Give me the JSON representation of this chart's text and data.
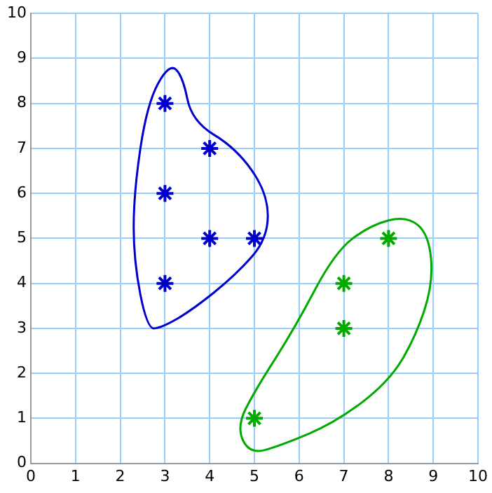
{
  "chart_data": {
    "type": "scatter",
    "xlim": [
      0,
      10
    ],
    "ylim": [
      0,
      10
    ],
    "xticks": [
      0,
      1,
      2,
      3,
      4,
      5,
      6,
      7,
      8,
      9,
      10
    ],
    "yticks": [
      0,
      1,
      2,
      3,
      4,
      5,
      6,
      7,
      8,
      9,
      10
    ],
    "grid": true,
    "legend": false,
    "marker": "cross",
    "series": [
      {
        "color": "#0000cc",
        "x": [
          3,
          4,
          3,
          4,
          5,
          3
        ],
        "values": [
          8,
          7,
          6,
          5,
          5,
          4
        ]
      },
      {
        "color": "#00aa00",
        "x": [
          8,
          7,
          7,
          5
        ],
        "values": [
          5,
          4,
          3,
          1
        ]
      }
    ]
  }
}
